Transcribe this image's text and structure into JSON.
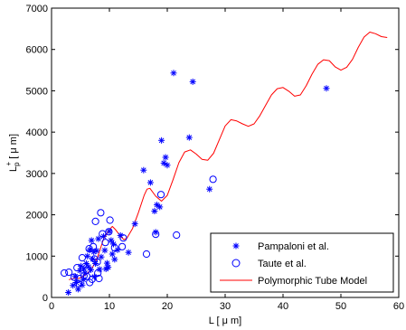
{
  "chart_data": {
    "type": "scatter",
    "xlabel": "L  [ μ m]",
    "ylabel": {
      "base": "L",
      "sub": "p",
      "sup": "+",
      "rest": " [ μ m]"
    },
    "xlim": [
      0,
      60
    ],
    "ylim": [
      0,
      7000
    ],
    "xticks": [
      0,
      10,
      20,
      30,
      40,
      50,
      60
    ],
    "yticks": [
      0,
      1000,
      2000,
      3000,
      4000,
      5000,
      6000,
      7000
    ],
    "xtick_labels": [
      "0",
      "10",
      "20",
      "30",
      "40",
      "50",
      "60"
    ],
    "ytick_labels": [
      "0",
      "1000",
      "2000",
      "3000",
      "4000",
      "5000",
      "6000",
      "7000"
    ],
    "grid": false,
    "legend_position": "bottom-right",
    "colors": {
      "pampaloni": "#0000ff",
      "taute": "#0000ff",
      "model": "#ff0000"
    },
    "series": [
      {
        "name": "Pampaloni et al.",
        "marker": "asterisk",
        "points": [
          [
            2.9,
            120
          ],
          [
            3.7,
            290
          ],
          [
            4.1,
            510
          ],
          [
            4.3,
            360
          ],
          [
            4.6,
            200
          ],
          [
            4.9,
            650
          ],
          [
            5.1,
            760
          ],
          [
            5.3,
            300
          ],
          [
            5.5,
            430
          ],
          [
            5.6,
            700
          ],
          [
            5.8,
            590
          ],
          [
            6.0,
            820
          ],
          [
            6.2,
            1000
          ],
          [
            6.4,
            740
          ],
          [
            6.6,
            1150
          ],
          [
            6.8,
            670
          ],
          [
            6.9,
            1380
          ],
          [
            7.1,
            930
          ],
          [
            7.3,
            1100
          ],
          [
            7.4,
            500
          ],
          [
            7.6,
            820
          ],
          [
            7.8,
            1130
          ],
          [
            8.1,
            1420
          ],
          [
            8.3,
            680
          ],
          [
            8.6,
            980
          ],
          [
            9.0,
            1480
          ],
          [
            9.2,
            1140
          ],
          [
            9.4,
            690
          ],
          [
            9.6,
            830
          ],
          [
            9.8,
            730
          ],
          [
            10.0,
            1600
          ],
          [
            10.3,
            1380
          ],
          [
            10.5,
            1050
          ],
          [
            10.7,
            1290
          ],
          [
            10.9,
            920
          ],
          [
            11.4,
            1150
          ],
          [
            11.9,
            1500
          ],
          [
            13.3,
            1090
          ],
          [
            14.4,
            1780
          ],
          [
            15.9,
            3080
          ],
          [
            17.1,
            2780
          ],
          [
            17.8,
            2090
          ],
          [
            18.0,
            1580
          ],
          [
            18.2,
            2240
          ],
          [
            18.7,
            2190
          ],
          [
            19.0,
            3800
          ],
          [
            19.4,
            3250
          ],
          [
            19.7,
            3390
          ],
          [
            20.0,
            3200
          ],
          [
            21.1,
            5430
          ],
          [
            23.8,
            3870
          ],
          [
            24.4,
            5220
          ],
          [
            27.3,
            2620
          ],
          [
            47.5,
            5060
          ]
        ]
      },
      {
        "name": "Taute et al.",
        "marker": "circle",
        "points": [
          [
            2.2,
            590
          ],
          [
            3.0,
            610
          ],
          [
            3.9,
            490
          ],
          [
            4.4,
            720
          ],
          [
            4.6,
            340
          ],
          [
            4.9,
            460
          ],
          [
            5.3,
            960
          ],
          [
            5.6,
            520
          ],
          [
            6.1,
            510
          ],
          [
            6.1,
            660
          ],
          [
            6.5,
            1180
          ],
          [
            6.6,
            360
          ],
          [
            7.0,
            440
          ],
          [
            7.2,
            1230
          ],
          [
            7.4,
            930
          ],
          [
            7.6,
            1840
          ],
          [
            7.9,
            860
          ],
          [
            8.0,
            590
          ],
          [
            8.2,
            460
          ],
          [
            8.5,
            2050
          ],
          [
            8.8,
            1540
          ],
          [
            9.3,
            1330
          ],
          [
            9.9,
            1590
          ],
          [
            10.1,
            1870
          ],
          [
            10.9,
            1200
          ],
          [
            12.2,
            1230
          ],
          [
            12.4,
            1440
          ],
          [
            16.4,
            1050
          ],
          [
            18.0,
            1530
          ],
          [
            18.9,
            2490
          ],
          [
            21.6,
            1510
          ],
          [
            27.9,
            2860
          ]
        ]
      },
      {
        "name": "Polymorphic Tube Model",
        "marker": "line",
        "points": [
          [
            3.0,
            430
          ],
          [
            4.0,
            470
          ],
          [
            4.5,
            460
          ],
          [
            5.0,
            470
          ],
          [
            6.0,
            560
          ],
          [
            7.0,
            700
          ],
          [
            8.0,
            990
          ],
          [
            9.0,
            1420
          ],
          [
            10.0,
            1640
          ],
          [
            10.5,
            1720
          ],
          [
            11.0,
            1650
          ],
          [
            12.0,
            1470
          ],
          [
            12.5,
            1400
          ],
          [
            13.0,
            1430
          ],
          [
            14.0,
            1670
          ],
          [
            15.0,
            2050
          ],
          [
            16.0,
            2470
          ],
          [
            16.5,
            2620
          ],
          [
            17.0,
            2640
          ],
          [
            18.0,
            2450
          ],
          [
            19.0,
            2330
          ],
          [
            20.0,
            2470
          ],
          [
            21.0,
            2850
          ],
          [
            22.0,
            3260
          ],
          [
            23.0,
            3520
          ],
          [
            24.0,
            3570
          ],
          [
            25.0,
            3470
          ],
          [
            26.0,
            3340
          ],
          [
            27.0,
            3320
          ],
          [
            28.0,
            3490
          ],
          [
            29.0,
            3820
          ],
          [
            30.0,
            4150
          ],
          [
            31.0,
            4300
          ],
          [
            32.0,
            4270
          ],
          [
            33.0,
            4200
          ],
          [
            34.0,
            4140
          ],
          [
            35.0,
            4200
          ],
          [
            36.0,
            4400
          ],
          [
            37.0,
            4650
          ],
          [
            38.0,
            4900
          ],
          [
            39.0,
            5050
          ],
          [
            40.0,
            5080
          ],
          [
            41.0,
            4990
          ],
          [
            42.0,
            4870
          ],
          [
            43.0,
            4900
          ],
          [
            44.0,
            5120
          ],
          [
            45.0,
            5400
          ],
          [
            46.0,
            5640
          ],
          [
            47.0,
            5750
          ],
          [
            48.0,
            5730
          ],
          [
            49.0,
            5580
          ],
          [
            50.0,
            5500
          ],
          [
            51.0,
            5570
          ],
          [
            52.0,
            5760
          ],
          [
            53.0,
            6050
          ],
          [
            54.0,
            6300
          ],
          [
            55.0,
            6420
          ],
          [
            56.0,
            6380
          ],
          [
            57.0,
            6310
          ],
          [
            58.0,
            6290
          ]
        ]
      }
    ]
  }
}
